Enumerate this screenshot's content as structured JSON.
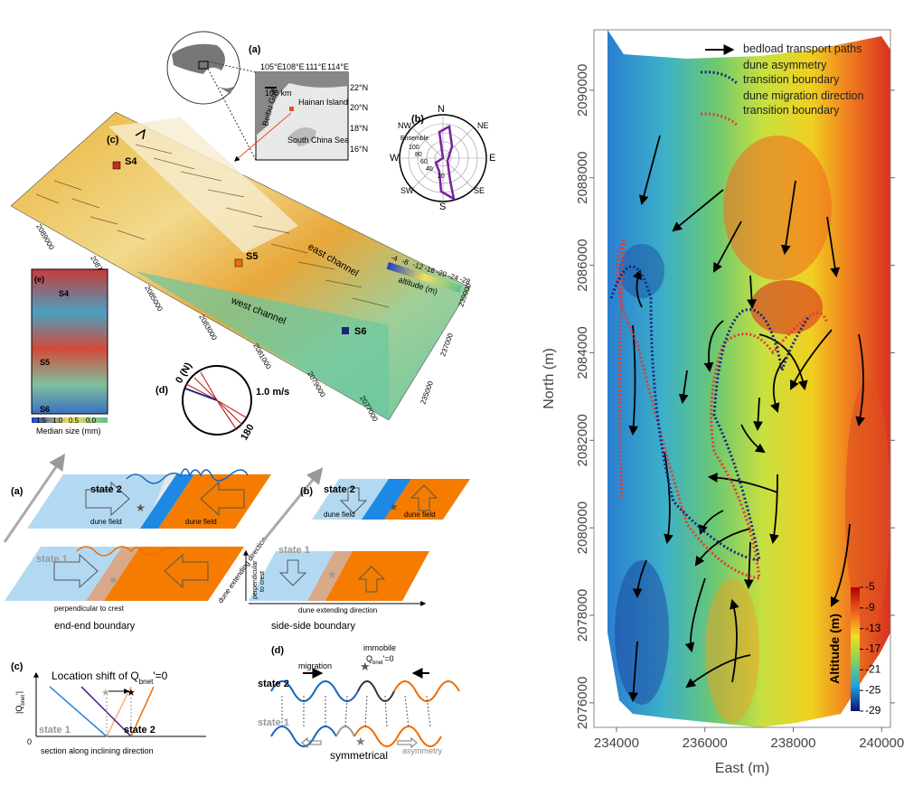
{
  "overview": {
    "locator": {
      "label": "(a)",
      "lon_ticks": [
        "105°E",
        "108°E",
        "111°E",
        "114°E"
      ],
      "lat_ticks": [
        "22°N",
        "20°N",
        "18°N",
        "16°N"
      ],
      "scale": "100 km",
      "places": [
        "Beibu Gulf",
        "Hainan Island",
        "South China Sea"
      ]
    },
    "wind_rose": {
      "label": "(b)",
      "directions": [
        "N",
        "NE",
        "E",
        "SE",
        "S",
        "SW",
        "W",
        "NW"
      ],
      "ensemble": "Ensemble",
      "rings": [
        "100",
        "80",
        "60",
        "40",
        "20"
      ]
    },
    "bathymetry": {
      "label": "(c)",
      "stations": [
        "S4",
        "S5",
        "S6"
      ],
      "channels": [
        "east channel",
        "west channel"
      ],
      "colorbar_label": "altitude (m)",
      "colorbar_ticks": [
        "-4",
        "-8",
        "-12",
        "-16",
        "-20",
        "-24",
        "-28"
      ],
      "north_ticks": [
        "2089000",
        "2087000",
        "2085000",
        "2083000",
        "2081000",
        "2079000",
        "2077000"
      ],
      "east_ticks": [
        "239000",
        "237000",
        "235000"
      ]
    },
    "current_rose": {
      "label": "(d)",
      "north": "0 (N)",
      "speed": "1.0 m/s",
      "south": "180"
    },
    "grain_map": {
      "label": "(e)",
      "stations": [
        "S4",
        "S5",
        "S6"
      ],
      "ticks": [
        "1.5",
        "1.0",
        "0.5",
        "0.0"
      ],
      "caption": "Median size (mm)"
    }
  },
  "schematic": {
    "end_end": {
      "label": "(a)",
      "state2": "state 2",
      "state1": "state 1",
      "field_left": "dune field",
      "field_right": "dune field",
      "extending": "dune extending direction",
      "perpendicular": "perpendicular to crest",
      "caption": "end-end boundary"
    },
    "side_side": {
      "label": "(b)",
      "state2": "state 2",
      "state1": "state 1",
      "field_left": "dune field",
      "field_right": "dune field",
      "perpendicular_lines": [
        "perpendicular",
        "to crest"
      ],
      "extending": "dune extending direction",
      "caption": "side-side boundary"
    },
    "shift": {
      "label": "(c)",
      "title_parts": [
        "Location shift of Q",
        "bnet",
        "'=0"
      ],
      "ylabel_parts": [
        "|Q",
        "bnet",
        "'|"
      ],
      "state1": "state 1",
      "state2": "state 2",
      "origin": "0",
      "xlabel": "section along inclining direction"
    },
    "profiles": {
      "label": "(d)",
      "migration": "migration",
      "immobile": "immobile",
      "q_parts": [
        "Q",
        "bnet",
        "'=0"
      ],
      "state2": "state 2",
      "state1": "state 1",
      "symmetrical": "symmetrical",
      "asymmetry": "asymmetry"
    }
  },
  "chart_data": {
    "type": "map",
    "xlabel": "East (m)",
    "ylabel": "North (m)",
    "xlim": [
      233490,
      240200
    ],
    "xticks": [
      234000,
      236000,
      238000,
      240000
    ],
    "ylim": [
      2075440,
      2091380
    ],
    "yticks": [
      2076000,
      2078000,
      2080000,
      2082000,
      2084000,
      2086000,
      2088000,
      2090000
    ],
    "legend": [
      {
        "lines": [
          "bedload transport paths"
        ],
        "color": "#000000"
      },
      {
        "lines": [
          "dune asymmetry",
          "transition boundary"
        ],
        "color": "#1a237e"
      },
      {
        "lines": [
          "dune migration direction",
          "transition boundary"
        ],
        "color": "#e53935"
      }
    ],
    "colorbar": {
      "label": "Altitude (m)",
      "lim": [
        -29,
        -5
      ],
      "ticks": [
        -5,
        -9,
        -13,
        -17,
        -21,
        -25,
        -29
      ]
    }
  }
}
